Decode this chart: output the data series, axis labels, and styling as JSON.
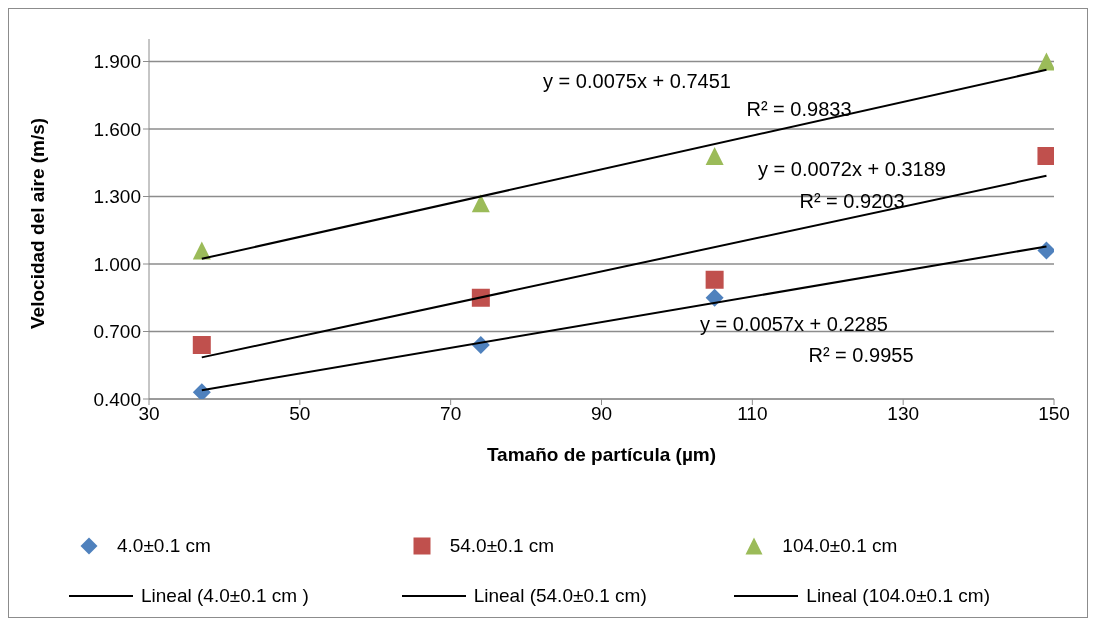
{
  "chart_data": {
    "type": "scatter",
    "xlabel": "Tamaño de partícula (µm)",
    "ylabel": "Velocidad del aire (m/s)",
    "xlim": [
      30,
      150
    ],
    "xticks": [
      30,
      50,
      70,
      90,
      110,
      130,
      150
    ],
    "ylim": [
      0.4,
      2.0
    ],
    "yticks": [
      {
        "value": 0.4,
        "label": "0.400"
      },
      {
        "value": 0.7,
        "label": "0.700"
      },
      {
        "value": 1.0,
        "label": "1.000"
      },
      {
        "value": 1.3,
        "label": "1.300"
      },
      {
        "value": 1.6,
        "label": "1.600"
      },
      {
        "value": 1.9,
        "label": "1.900"
      }
    ],
    "grid": "y",
    "legend": "bottom",
    "series": [
      {
        "name": "4.0±0.1 cm",
        "marker": "diamond",
        "color": "#4f81bd",
        "x": [
          37,
          74,
          105,
          149
        ],
        "values": [
          0.43,
          0.64,
          0.85,
          1.06
        ]
      },
      {
        "name": "54.0±0.1 cm",
        "marker": "square",
        "color": "#c0504d",
        "x": [
          37,
          74,
          105,
          149
        ],
        "values": [
          0.64,
          0.85,
          0.93,
          1.48
        ]
      },
      {
        "name": "104.0±0.1 cm",
        "marker": "triangle",
        "color": "#9bbb59",
        "x": [
          37,
          74,
          105,
          149
        ],
        "values": [
          1.06,
          1.27,
          1.48,
          1.9
        ]
      },
      {
        "name": "Lineal (4.0±0.1 cm )",
        "type": "line",
        "marker": "none",
        "color": "#000000",
        "x": [
          37,
          149
        ],
        "values": [
          0.439,
          1.078
        ]
      },
      {
        "name": "Lineal (54.0±0.1 cm)",
        "type": "line",
        "marker": "none",
        "color": "#000000",
        "x": [
          37,
          149
        ],
        "values": [
          0.585,
          1.392
        ]
      },
      {
        "name": "Lineal (104.0±0.1 cm)",
        "type": "line",
        "marker": "none",
        "color": "#000000",
        "x": [
          37,
          149
        ],
        "values": [
          1.023,
          1.863
        ]
      }
    ],
    "annotations": [
      "y = 0.0075x + 0.7451",
      "R² = 0.9833",
      "y = 0.0072x + 0.3189",
      "R² = 0.9203",
      "y = 0.0057x + 0.2285",
      "R² = 0.9955"
    ]
  }
}
